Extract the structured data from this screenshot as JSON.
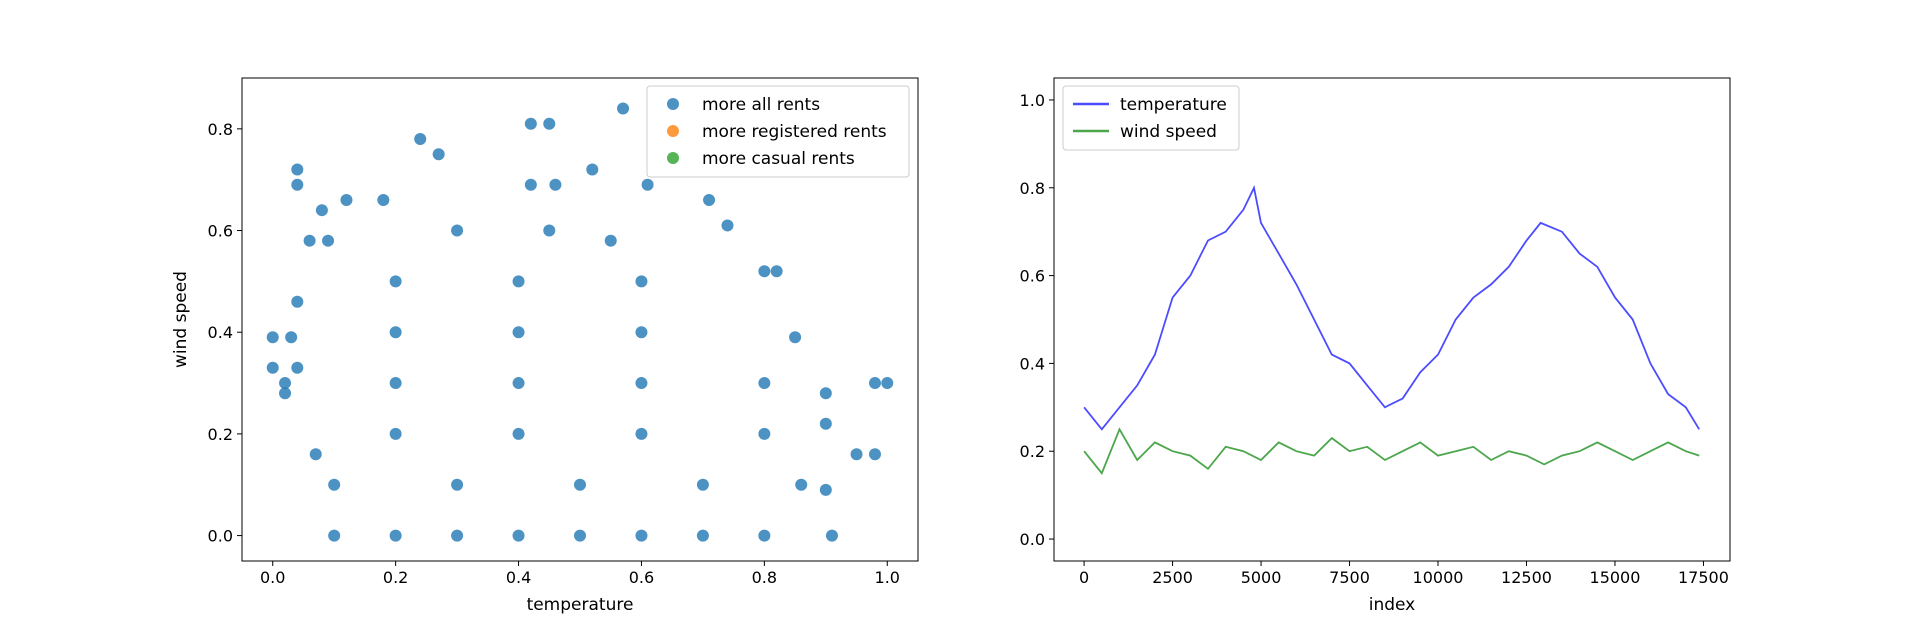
{
  "chart_data": [
    {
      "type": "scatter",
      "xlabel": "temperature",
      "ylabel": "wind speed",
      "xlim": [
        -0.05,
        1.05
      ],
      "ylim": [
        -0.05,
        0.9
      ],
      "xticks": [
        0.0,
        0.2,
        0.4,
        0.6,
        0.8,
        1.0
      ],
      "yticks": [
        0.0,
        0.2,
        0.4,
        0.6,
        0.8
      ],
      "xtick_labels": [
        "0.0",
        "0.2",
        "0.4",
        "0.6",
        "0.8",
        "1.0"
      ],
      "ytick_labels": [
        "0.0",
        "0.2",
        "0.4",
        "0.6",
        "0.8"
      ],
      "legend_position": "top-right",
      "series": [
        {
          "name": "more all rents",
          "color": "#1f77b4",
          "points": [
            [
              0.0,
              0.33
            ],
            [
              0.0,
              0.39
            ],
            [
              0.02,
              0.3
            ],
            [
              0.02,
              0.28
            ],
            [
              0.03,
              0.39
            ],
            [
              0.04,
              0.33
            ],
            [
              0.04,
              0.46
            ],
            [
              0.04,
              0.69
            ],
            [
              0.04,
              0.72
            ],
            [
              0.06,
              0.58
            ],
            [
              0.07,
              0.16
            ],
            [
              0.08,
              0.64
            ],
            [
              0.09,
              0.58
            ],
            [
              0.12,
              0.66
            ],
            [
              0.18,
              0.66
            ],
            [
              0.24,
              0.78
            ],
            [
              0.27,
              0.75
            ],
            [
              0.42,
              0.81
            ],
            [
              0.45,
              0.81
            ],
            [
              0.57,
              0.84
            ],
            [
              0.52,
              0.72
            ],
            [
              0.42,
              0.69
            ],
            [
              0.46,
              0.69
            ],
            [
              0.61,
              0.69
            ],
            [
              0.71,
              0.66
            ],
            [
              0.74,
              0.61
            ],
            [
              0.8,
              0.52
            ],
            [
              0.82,
              0.52
            ],
            [
              0.85,
              0.39
            ],
            [
              0.9,
              0.28
            ],
            [
              0.9,
              0.22
            ],
            [
              0.95,
              0.16
            ],
            [
              0.98,
              0.16
            ],
            [
              0.9,
              0.09
            ],
            [
              0.98,
              0.3
            ],
            [
              1.0,
              0.3
            ],
            [
              0.1,
              0.0
            ],
            [
              0.2,
              0.0
            ],
            [
              0.3,
              0.0
            ],
            [
              0.4,
              0.0
            ],
            [
              0.5,
              0.0
            ],
            [
              0.6,
              0.0
            ],
            [
              0.7,
              0.0
            ],
            [
              0.8,
              0.0
            ],
            [
              0.91,
              0.0
            ],
            [
              0.1,
              0.1
            ],
            [
              0.3,
              0.1
            ],
            [
              0.5,
              0.1
            ],
            [
              0.7,
              0.1
            ],
            [
              0.86,
              0.1
            ],
            [
              0.2,
              0.2
            ],
            [
              0.4,
              0.2
            ],
            [
              0.6,
              0.2
            ],
            [
              0.8,
              0.2
            ],
            [
              0.2,
              0.3
            ],
            [
              0.4,
              0.3
            ],
            [
              0.6,
              0.3
            ],
            [
              0.8,
              0.3
            ],
            [
              0.2,
              0.4
            ],
            [
              0.4,
              0.4
            ],
            [
              0.6,
              0.4
            ],
            [
              0.2,
              0.5
            ],
            [
              0.4,
              0.5
            ],
            [
              0.6,
              0.5
            ],
            [
              0.3,
              0.6
            ],
            [
              0.45,
              0.6
            ],
            [
              0.55,
              0.58
            ]
          ]
        },
        {
          "name": "more registered rents",
          "color": "#ff7f0e",
          "points": []
        },
        {
          "name": "more casual rents",
          "color": "#2ca02c",
          "points": []
        }
      ]
    },
    {
      "type": "line",
      "xlabel": "index",
      "ylabel": "",
      "xlim": [
        -850,
        18250
      ],
      "ylim": [
        -0.05,
        1.05
      ],
      "xticks": [
        0,
        2500,
        5000,
        7500,
        10000,
        12500,
        15000,
        17500
      ],
      "yticks": [
        0.0,
        0.2,
        0.4,
        0.6,
        0.8,
        1.0
      ],
      "xtick_labels": [
        "0",
        "2500",
        "5000",
        "7500",
        "10000",
        "12500",
        "15000",
        "17500"
      ],
      "ytick_labels": [
        "0.0",
        "0.2",
        "0.4",
        "0.6",
        "0.8",
        "1.0"
      ],
      "legend_position": "top-left",
      "series": [
        {
          "name": "temperature",
          "color": "#0000ff",
          "x": [
            0,
            500,
            1000,
            1500,
            2000,
            2500,
            3000,
            3500,
            4000,
            4500,
            4800,
            5000,
            5500,
            6000,
            6500,
            7000,
            7500,
            8000,
            8500,
            9000,
            9500,
            10000,
            10500,
            11000,
            11500,
            12000,
            12500,
            12900,
            13500,
            14000,
            14500,
            15000,
            15500,
            16000,
            16500,
            17000,
            17379
          ],
          "y": [
            0.3,
            0.25,
            0.3,
            0.35,
            0.42,
            0.55,
            0.6,
            0.68,
            0.7,
            0.75,
            0.8,
            0.72,
            0.65,
            0.58,
            0.5,
            0.42,
            0.4,
            0.35,
            0.3,
            0.32,
            0.38,
            0.42,
            0.5,
            0.55,
            0.58,
            0.62,
            0.68,
            0.72,
            0.7,
            0.65,
            0.62,
            0.55,
            0.5,
            0.4,
            0.33,
            0.3,
            0.25
          ]
        },
        {
          "name": "wind speed",
          "color": "#008000",
          "x": [
            0,
            500,
            1000,
            1500,
            2000,
            2500,
            3000,
            3500,
            4000,
            4500,
            5000,
            5500,
            6000,
            6500,
            7000,
            7500,
            8000,
            8500,
            9000,
            9500,
            10000,
            10500,
            11000,
            11500,
            12000,
            12500,
            13000,
            13500,
            14000,
            14500,
            15000,
            15500,
            16000,
            16500,
            17000,
            17379
          ],
          "y": [
            0.2,
            0.15,
            0.25,
            0.18,
            0.22,
            0.2,
            0.19,
            0.16,
            0.21,
            0.2,
            0.18,
            0.22,
            0.2,
            0.19,
            0.23,
            0.2,
            0.21,
            0.18,
            0.2,
            0.22,
            0.19,
            0.2,
            0.21,
            0.18,
            0.2,
            0.19,
            0.17,
            0.19,
            0.2,
            0.22,
            0.2,
            0.18,
            0.2,
            0.22,
            0.2,
            0.19
          ]
        }
      ]
    }
  ]
}
